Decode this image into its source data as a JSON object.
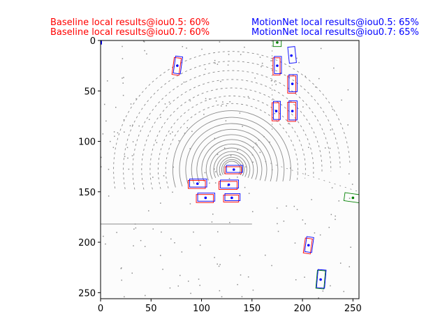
{
  "header": {
    "baseline": {
      "line1": "Baseline local results@iou0.5: 60%",
      "line2": "Baseline local results@iou0.7: 60%",
      "color": "#ff0000"
    },
    "motionnet": {
      "line1": "MotionNet local results@iou0.5: 65%",
      "line2": "MotionNet local results@iou0.7: 65%",
      "color": "#0000ff"
    }
  },
  "chart_data": {
    "type": "scatter",
    "title": "",
    "xlabel": "",
    "ylabel": "",
    "xlim": [
      0,
      256
    ],
    "ylim": [
      256,
      0
    ],
    "xticks": [
      0,
      50,
      100,
      150,
      200,
      250
    ],
    "yticks": [
      0,
      50,
      100,
      150,
      200,
      250
    ],
    "grid": false,
    "colors": {
      "background_points": "#8c8c8c",
      "ground_truth": "#008000",
      "baseline": "#ff0000",
      "motionnet": "#0000ff"
    },
    "objects": [
      {
        "x": 76,
        "y": 25
      },
      {
        "x": 175,
        "y": 25
      },
      {
        "x": 189,
        "y": 15
      },
      {
        "x": 190,
        "y": 43
      },
      {
        "x": 174,
        "y": 70
      },
      {
        "x": 190,
        "y": 70
      },
      {
        "x": 132,
        "y": 128
      },
      {
        "x": 96,
        "y": 142
      },
      {
        "x": 127,
        "y": 143
      },
      {
        "x": 104,
        "y": 156
      },
      {
        "x": 130,
        "y": 156
      },
      {
        "x": 206,
        "y": 203
      },
      {
        "x": 218,
        "y": 237
      },
      {
        "x": 250,
        "y": 156
      },
      {
        "x": 175,
        "y": 2
      }
    ]
  }
}
